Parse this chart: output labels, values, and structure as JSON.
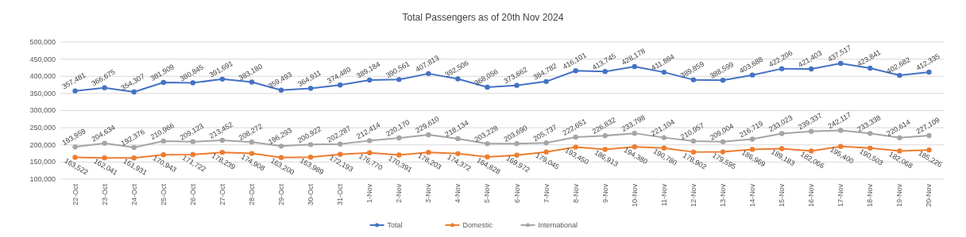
{
  "chart_data": {
    "type": "line",
    "title": "Total Passengers as of 20th Nov 2024",
    "categories": [
      "22-Oct",
      "23-Oct",
      "24-Oct",
      "25-Oct",
      "26-Oct",
      "27-Oct",
      "28-Oct",
      "29-Oct",
      "30-Oct",
      "31-Oct",
      "1-Nov",
      "2-Nov",
      "3-Nov",
      "4-Nov",
      "5-Nov",
      "6-Nov",
      "7-Nov",
      "8-Nov",
      "9-Nov",
      "10-Nov",
      "11-Nov",
      "12-Nov",
      "13-Nov",
      "14-Nov",
      "15-Nov",
      "16-Nov",
      "17-Nov",
      "18-Nov",
      "19-Nov",
      "20-Nov"
    ],
    "series": [
      {
        "name": "Total",
        "color": "#4472c4",
        "values": [
          357481,
          366675,
          354307,
          381909,
          380845,
          391691,
          383180,
          359493,
          364911,
          374480,
          389184,
          390561,
          407813,
          392506,
          368056,
          373662,
          384782,
          416101,
          413745,
          428178,
          411884,
          389859,
          388599,
          403688,
          422206,
          421403,
          437517,
          423841,
          402682,
          412335
        ],
        "value_labels": [
          "357,481",
          "366,675",
          "354,307",
          "381,909",
          "380,845",
          "391,691",
          "383,180",
          "359,493",
          "364,911",
          "374,480",
          "389,184",
          "390,561",
          "407,813",
          "392,506",
          "368,056",
          "373,662",
          "384,782",
          "416,101",
          "413,745",
          "428,178",
          "411,884",
          "389,859",
          "388,599",
          "403,688",
          "422,206",
          "421,403",
          "437,517",
          "423,841",
          "402,682",
          "412,335"
        ]
      },
      {
        "name": "Domestic",
        "color": "#ed7d31",
        "values": [
          163522,
          162041,
          161931,
          170943,
          171722,
          178239,
          174908,
          163200,
          163989,
          172193,
          176770,
          170391,
          178203,
          174372,
          164828,
          169972,
          179045,
          193450,
          186913,
          194380,
          190780,
          178902,
          179595,
          186969,
          189183,
          182066,
          195400,
          190503,
          182068,
          185226
        ],
        "value_labels": [
          "163,522",
          "162,041",
          "161,931",
          "170,943",
          "171,722",
          "178,239",
          "174,908",
          "163,200",
          "163,989",
          "172,193",
          "176,770",
          "170,391",
          "178,203",
          "174,372",
          "164,828",
          "169,972",
          "179,045",
          "193,450",
          "186,913",
          "194,380",
          "190,780",
          "178,902",
          "179,595",
          "186,969",
          "189,183",
          "182,066",
          "195,400",
          "190,503",
          "182,068",
          "185,226"
        ]
      },
      {
        "name": "International",
        "color": "#a5a5a5",
        "values": [
          193959,
          204634,
          192376,
          210966,
          209123,
          213452,
          208272,
          196293,
          200922,
          202287,
          212414,
          220170,
          229610,
          218134,
          203228,
          203690,
          205737,
          222651,
          226832,
          233798,
          221104,
          210957,
          209004,
          216719,
          233023,
          239337,
          242117,
          233338,
          220614,
          227109
        ],
        "value_labels": [
          "193,959",
          "204,634",
          "192,376",
          "210,966",
          "209,123",
          "213,452",
          "208,272",
          "196,293",
          "200,922",
          "202,287",
          "212,414",
          "220,170",
          "229,610",
          "218,134",
          "203,228",
          "203,690",
          "205,737",
          "222,651",
          "226,832",
          "233,798",
          "221,104",
          "210,957",
          "209,004",
          "216,719",
          "233,023",
          "239,337",
          "242,117",
          "233,338",
          "220,614",
          "227,109"
        ]
      }
    ],
    "ylim": [
      100000,
      500000
    ],
    "yticks": [
      {
        "value": 100000,
        "label": "100,000"
      },
      {
        "value": 150000,
        "label": "150,000"
      },
      {
        "value": 200000,
        "label": "200,000"
      },
      {
        "value": 250000,
        "label": "250,000"
      },
      {
        "value": 300000,
        "label": "300,000"
      },
      {
        "value": 350000,
        "label": "350,000"
      },
      {
        "value": 400000,
        "label": "400,000"
      },
      {
        "value": 450000,
        "label": "450,000"
      },
      {
        "value": 500000,
        "label": "500,000"
      }
    ],
    "grid": "y",
    "legend": "bottom",
    "marker": "circle",
    "line_style": "solid"
  }
}
